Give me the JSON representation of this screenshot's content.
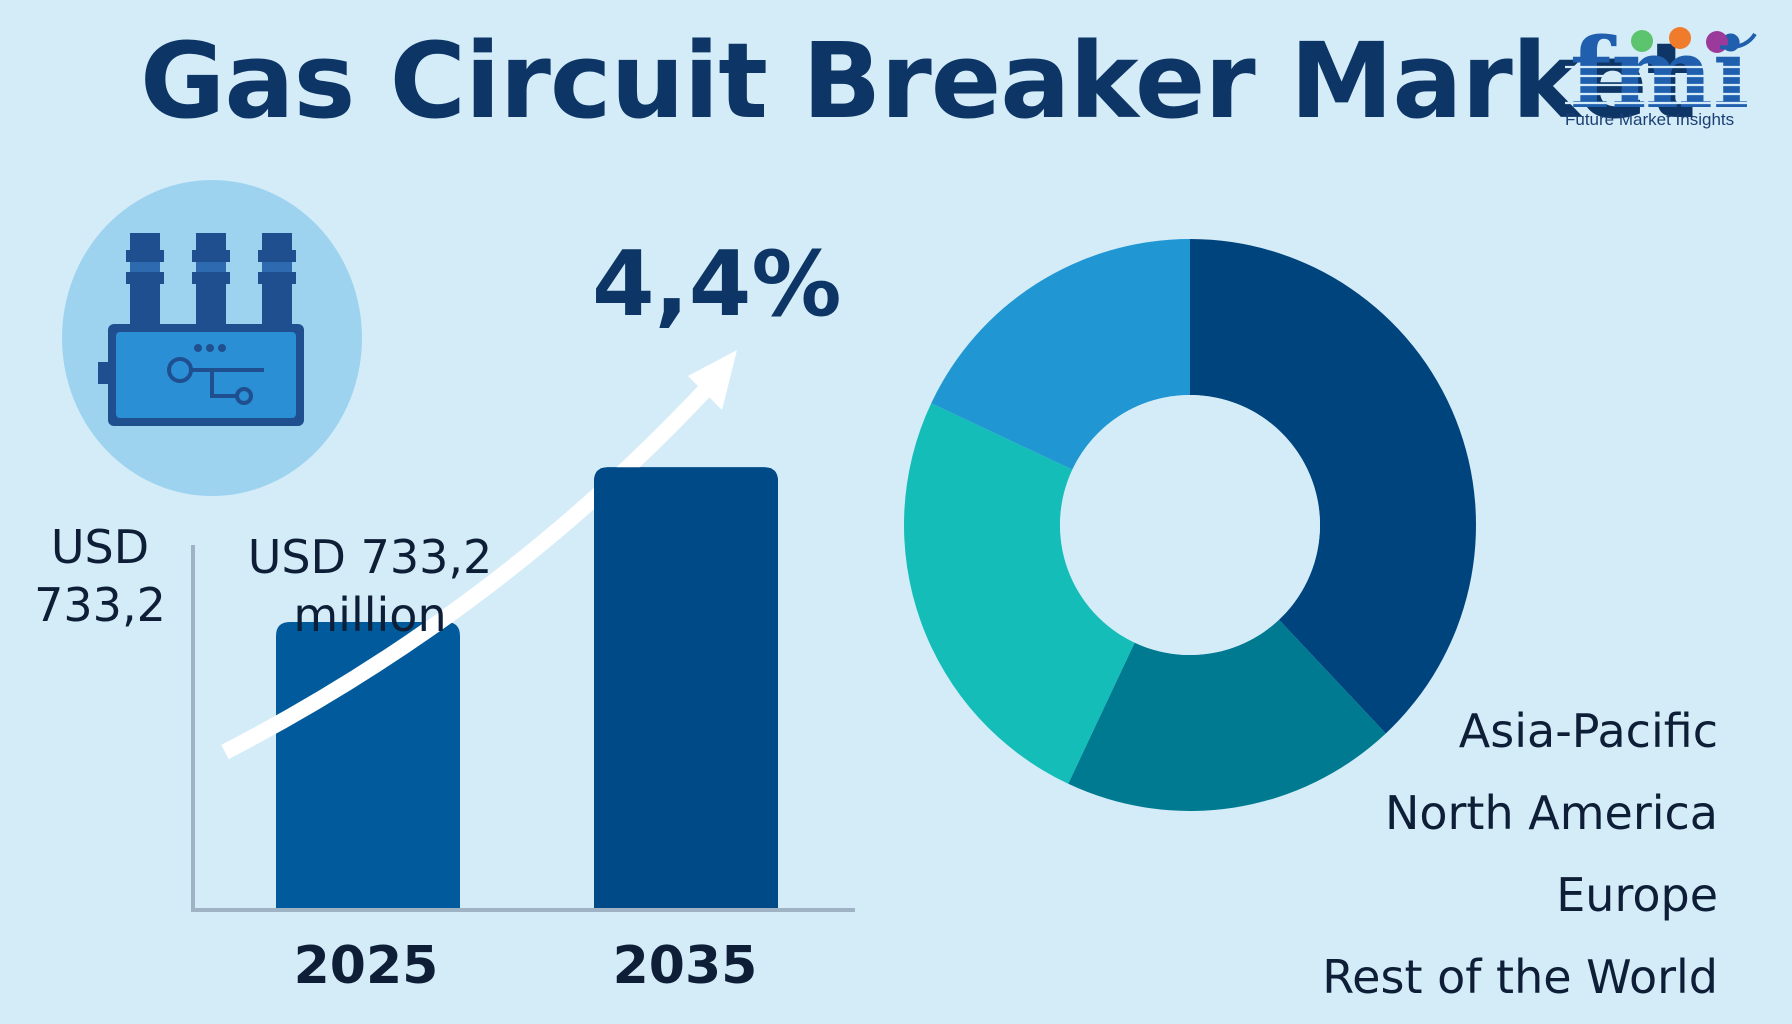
{
  "title": "Gas Circuit Breaker Market",
  "logo": {
    "wordmark": "fmi",
    "tagline": "Future Market Insights",
    "colors": {
      "wordmark": "#1f5fad",
      "dot1": "#5cc36f",
      "dot2": "#f07b2b",
      "dot3": "#9b3a9b"
    }
  },
  "icon": {
    "name": "gas-circuit-breaker-icon"
  },
  "cagr": "4,4%",
  "y_axis_label": {
    "line1": "USD",
    "line2": "733,2"
  },
  "colors": {
    "background": "#d3ecf8",
    "bar_2025": "#005a9c",
    "bar_2035": "#004a87",
    "axis": "#9fb3c4",
    "arrow": "#ffffff"
  },
  "chart_data": [
    {
      "type": "bar",
      "categories": [
        "2025",
        "2035"
      ],
      "values": [
        733.2,
        1130
      ],
      "ylim": [
        0,
        1200
      ],
      "data_labels": [
        {
          "category": "2025",
          "line1": "USD 733,2",
          "line2": "million"
        }
      ],
      "title": "",
      "xlabel": "",
      "ylabel": ""
    },
    {
      "type": "pie",
      "donut": true,
      "legend": "bottom-right",
      "labels": [
        "Asia-Pacific",
        "North America",
        "Europe",
        "Rest of the World"
      ],
      "values": [
        38,
        19,
        25,
        18
      ],
      "colors": [
        "#00447e",
        "#007a91",
        "#14bdb8",
        "#2097d2"
      ]
    }
  ]
}
